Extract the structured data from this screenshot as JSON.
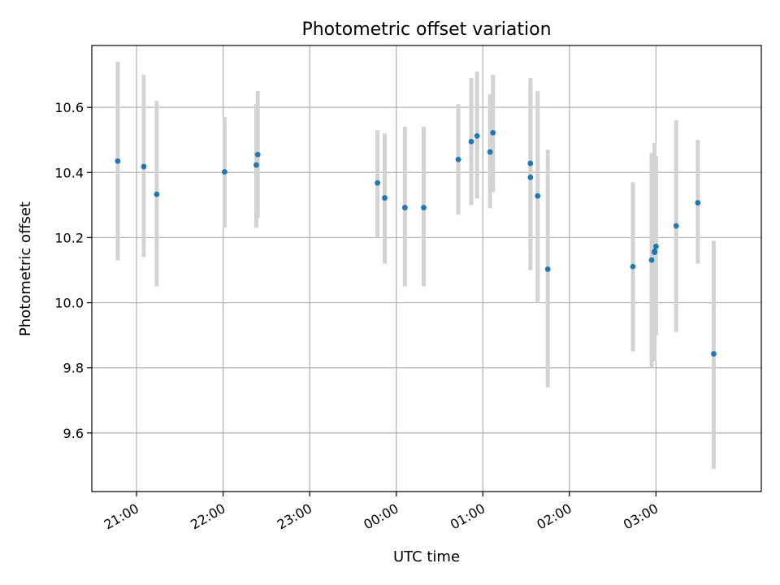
{
  "chart_data": {
    "type": "scatter",
    "title": "Photometric offset variation",
    "xlabel": "UTC time",
    "ylabel": "Photometric offset",
    "x_tick_labels": [
      "21:00",
      "22:00",
      "23:00",
      "00:00",
      "01:00",
      "02:00",
      "03:00"
    ],
    "y_tick_labels": [
      "9.6",
      "9.8",
      "10.0",
      "10.2",
      "10.4",
      "10.6"
    ],
    "x_tick_values": [
      "21:00",
      "22:00",
      "23:00",
      "00:00",
      "01:00",
      "02:00",
      "03:00"
    ],
    "y_ticks": [
      9.6,
      9.8,
      10.0,
      10.2,
      10.4,
      10.6
    ],
    "xlim": [
      "20:29",
      "04:13"
    ],
    "ylim": [
      9.42,
      10.79
    ],
    "grid": true,
    "series": [
      {
        "marker_color": "#1f77b4",
        "errorbar_color": "#d3d3d3",
        "points": [
          {
            "x": "20:47",
            "y": 10.435,
            "ylo": 10.13,
            "yhi": 10.74
          },
          {
            "x": "21:05",
            "y": 10.418,
            "ylo": 10.14,
            "yhi": 10.7
          },
          {
            "x": "21:14",
            "y": 10.333,
            "ylo": 10.05,
            "yhi": 10.62
          },
          {
            "x": "22:01",
            "y": 10.402,
            "ylo": 10.23,
            "yhi": 10.57
          },
          {
            "x": "22:23",
            "y": 10.423,
            "ylo": 10.23,
            "yhi": 10.61
          },
          {
            "x": "22:24",
            "y": 10.455,
            "ylo": 10.26,
            "yhi": 10.65
          },
          {
            "x": "23:47",
            "y": 10.368,
            "ylo": 10.2,
            "yhi": 10.53
          },
          {
            "x": "23:52",
            "y": 10.322,
            "ylo": 10.12,
            "yhi": 10.52
          },
          {
            "x": "00:06",
            "y": 10.292,
            "ylo": 10.05,
            "yhi": 10.54
          },
          {
            "x": "00:19",
            "y": 10.292,
            "ylo": 10.05,
            "yhi": 10.54
          },
          {
            "x": "00:43",
            "y": 10.44,
            "ylo": 10.27,
            "yhi": 10.61
          },
          {
            "x": "00:52",
            "y": 10.495,
            "ylo": 10.3,
            "yhi": 10.69
          },
          {
            "x": "00:56",
            "y": 10.512,
            "ylo": 10.32,
            "yhi": 10.71
          },
          {
            "x": "01:05",
            "y": 10.463,
            "ylo": 10.29,
            "yhi": 10.64
          },
          {
            "x": "01:07",
            "y": 10.522,
            "ylo": 10.34,
            "yhi": 10.7
          },
          {
            "x": "01:33",
            "y": 10.428,
            "ylo": 10.16,
            "yhi": 10.69
          },
          {
            "x": "01:33",
            "y": 10.385,
            "ylo": 10.1,
            "yhi": 10.67
          },
          {
            "x": "01:38",
            "y": 10.328,
            "ylo": 10.0,
            "yhi": 10.65
          },
          {
            "x": "01:45",
            "y": 10.103,
            "ylo": 9.74,
            "yhi": 10.47
          },
          {
            "x": "02:44",
            "y": 10.111,
            "ylo": 9.85,
            "yhi": 10.37
          },
          {
            "x": "02:57",
            "y": 10.131,
            "ylo": 9.8,
            "yhi": 10.46
          },
          {
            "x": "02:59",
            "y": 10.155,
            "ylo": 9.82,
            "yhi": 10.49
          },
          {
            "x": "02:59",
            "y": 10.158,
            "ylo": 9.86,
            "yhi": 10.45
          },
          {
            "x": "03:00",
            "y": 10.173,
            "ylo": 9.9,
            "yhi": 10.45
          },
          {
            "x": "03:14",
            "y": 10.236,
            "ylo": 9.91,
            "yhi": 10.56
          },
          {
            "x": "03:29",
            "y": 10.307,
            "ylo": 10.12,
            "yhi": 10.5
          },
          {
            "x": "03:40",
            "y": 9.843,
            "ylo": 9.49,
            "yhi": 10.19
          }
        ]
      }
    ]
  }
}
